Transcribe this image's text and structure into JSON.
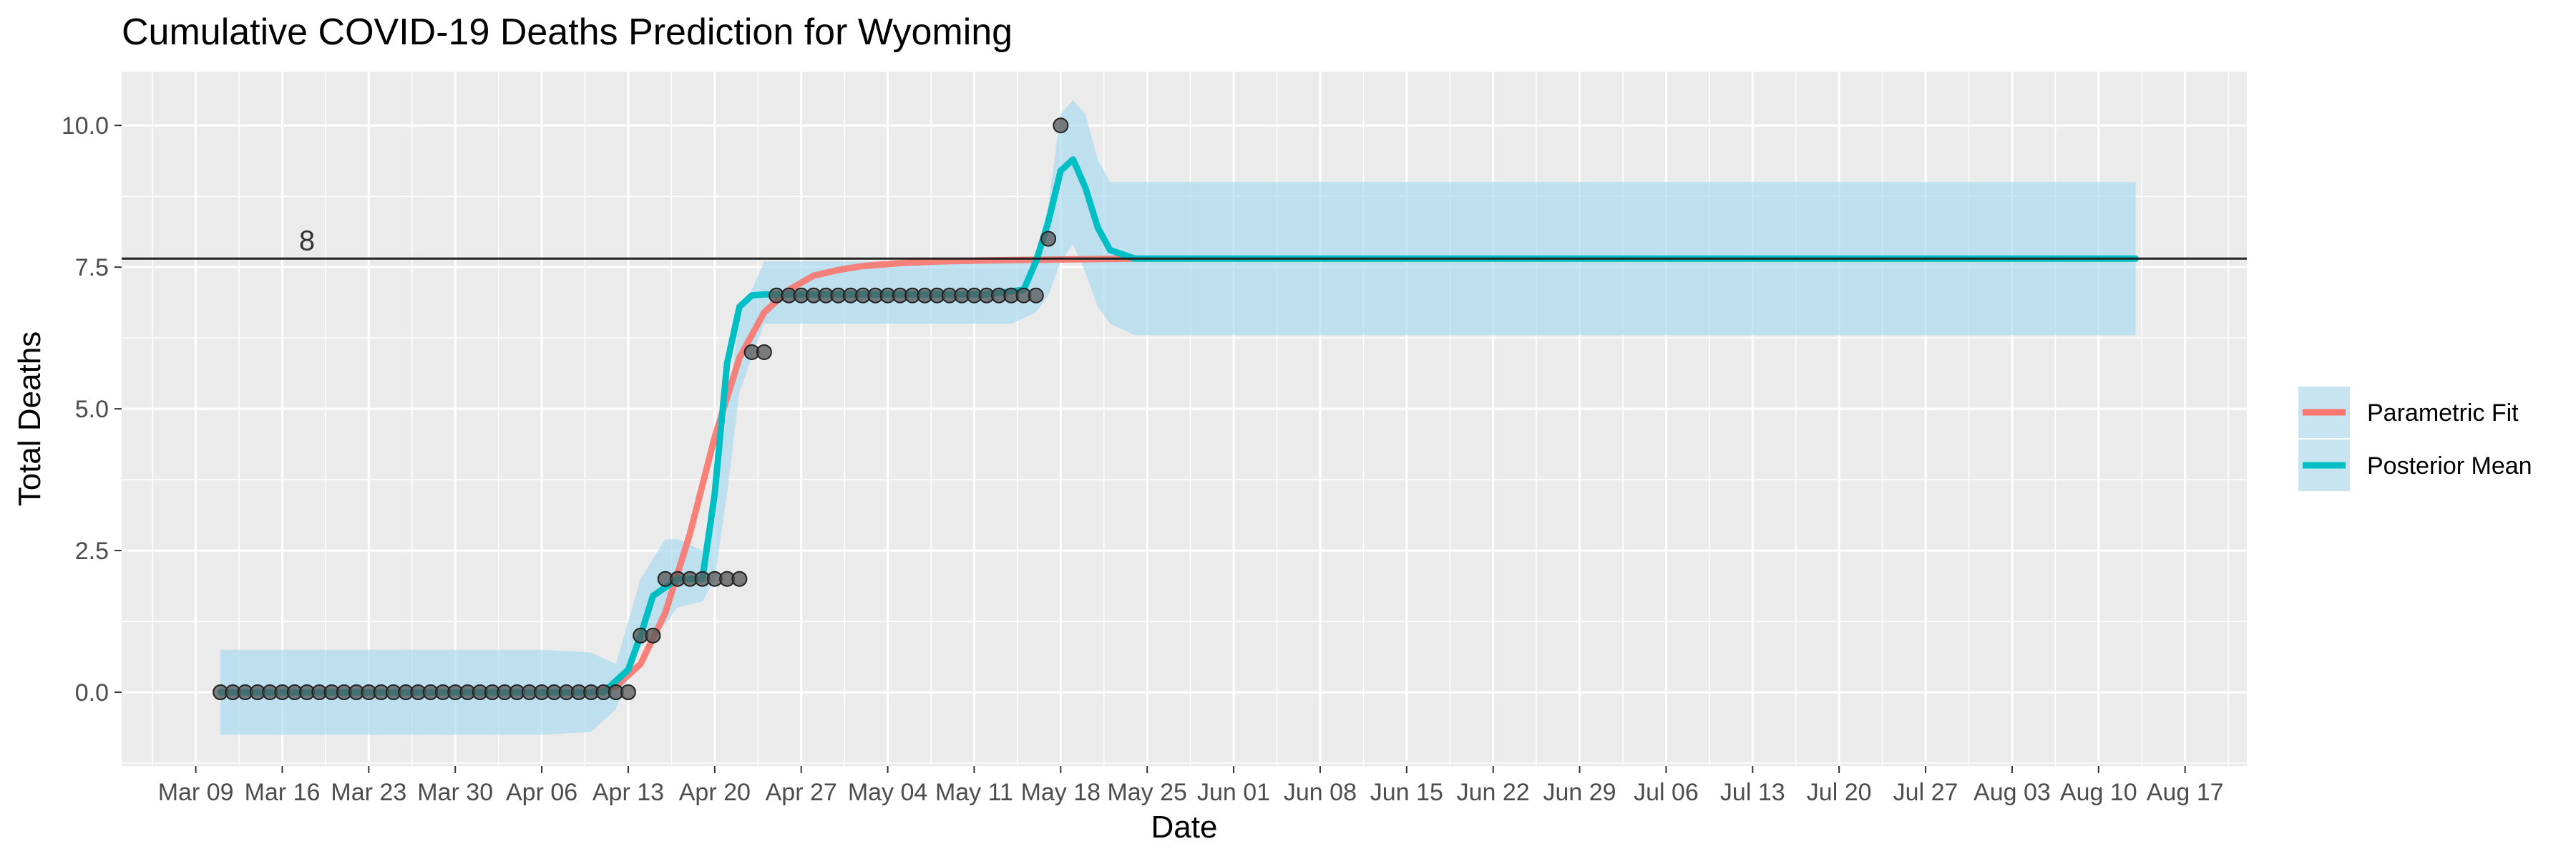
{
  "chart_data": {
    "type": "line",
    "title": "Cumulative COVID-19 Deaths Prediction for Wyoming",
    "xlabel": "Date",
    "ylabel": "Total Deaths",
    "xlim": [
      "2020-03-03",
      "2020-08-22"
    ],
    "ylim": [
      -1.3,
      10.95
    ],
    "x_ticks": [
      "2020-03-09",
      "2020-03-16",
      "2020-03-23",
      "2020-03-30",
      "2020-04-06",
      "2020-04-13",
      "2020-04-20",
      "2020-04-27",
      "2020-05-04",
      "2020-05-11",
      "2020-05-18",
      "2020-05-25",
      "2020-06-01",
      "2020-06-08",
      "2020-06-15",
      "2020-06-22",
      "2020-06-29",
      "2020-07-06",
      "2020-07-13",
      "2020-07-20",
      "2020-07-27",
      "2020-08-03",
      "2020-08-10",
      "2020-08-17"
    ],
    "x_tick_labels": [
      "Mar 09",
      "Mar 16",
      "Mar 23",
      "Mar 30",
      "Apr 06",
      "Apr 13",
      "Apr 20",
      "Apr 27",
      "May 04",
      "May 11",
      "May 18",
      "May 25",
      "Jun 01",
      "Jun 08",
      "Jun 15",
      "Jun 22",
      "Jun 29",
      "Jul 06",
      "Jul 13",
      "Jul 20",
      "Jul 27",
      "Aug 03",
      "Aug 10",
      "Aug 17"
    ],
    "y_ticks": [
      0,
      2.5,
      5,
      7.5,
      10
    ],
    "y_tick_labels": [
      "0.0",
      "2.5",
      "5.0",
      "7.5",
      "10.0"
    ],
    "grid": true,
    "legend_position": "right",
    "hline": {
      "y": 7.65,
      "label": "8",
      "label_x": "2020-03-18",
      "label_y": 7.8
    },
    "colors": {
      "parametric": "#F8766D",
      "posterior": "#00BFC4",
      "band": "#A6D8F0",
      "points": "#555555",
      "panel": "#EBEBEB",
      "grid": "#FFFFFF"
    },
    "observed": {
      "x": [
        "2020-03-11",
        "2020-03-12",
        "2020-03-13",
        "2020-03-14",
        "2020-03-15",
        "2020-03-16",
        "2020-03-17",
        "2020-03-18",
        "2020-03-19",
        "2020-03-20",
        "2020-03-21",
        "2020-03-22",
        "2020-03-23",
        "2020-03-24",
        "2020-03-25",
        "2020-03-26",
        "2020-03-27",
        "2020-03-28",
        "2020-03-29",
        "2020-03-30",
        "2020-03-31",
        "2020-04-01",
        "2020-04-02",
        "2020-04-03",
        "2020-04-04",
        "2020-04-05",
        "2020-04-06",
        "2020-04-07",
        "2020-04-08",
        "2020-04-09",
        "2020-04-10",
        "2020-04-11",
        "2020-04-12",
        "2020-04-13",
        "2020-04-14",
        "2020-04-15",
        "2020-04-16",
        "2020-04-17",
        "2020-04-18",
        "2020-04-19",
        "2020-04-20",
        "2020-04-21",
        "2020-04-22",
        "2020-04-23",
        "2020-04-24",
        "2020-04-25",
        "2020-04-26",
        "2020-04-27",
        "2020-04-28",
        "2020-04-29",
        "2020-04-30",
        "2020-05-01",
        "2020-05-02",
        "2020-05-03",
        "2020-05-04",
        "2020-05-05",
        "2020-05-06",
        "2020-05-07",
        "2020-05-08",
        "2020-05-09",
        "2020-05-10",
        "2020-05-11",
        "2020-05-12",
        "2020-05-13",
        "2020-05-14",
        "2020-05-15",
        "2020-05-16",
        "2020-05-17",
        "2020-05-18"
      ],
      "y": [
        0,
        0,
        0,
        0,
        0,
        0,
        0,
        0,
        0,
        0,
        0,
        0,
        0,
        0,
        0,
        0,
        0,
        0,
        0,
        0,
        0,
        0,
        0,
        0,
        0,
        0,
        0,
        0,
        0,
        0,
        0,
        0,
        0,
        0,
        1,
        1,
        2,
        2,
        2,
        2,
        2,
        2,
        2,
        6,
        6,
        7,
        7,
        7,
        7,
        7,
        7,
        7,
        7,
        7,
        7,
        7,
        7,
        7,
        7,
        7,
        7,
        7,
        7,
        7,
        7,
        7,
        7,
        8,
        10
      ]
    },
    "series": [
      {
        "name": "Parametric Fit",
        "x": [
          "2020-04-10",
          "2020-04-12",
          "2020-04-14",
          "2020-04-16",
          "2020-04-18",
          "2020-04-20",
          "2020-04-22",
          "2020-04-24",
          "2020-04-26",
          "2020-04-28",
          "2020-04-30",
          "2020-05-02",
          "2020-05-05",
          "2020-05-08",
          "2020-05-12",
          "2020-05-16",
          "2020-05-20",
          "2020-05-24"
        ],
        "values": [
          0,
          0.1,
          0.5,
          1.4,
          2.8,
          4.5,
          5.9,
          6.7,
          7.1,
          7.35,
          7.45,
          7.52,
          7.57,
          7.6,
          7.62,
          7.63,
          7.64,
          7.65
        ]
      },
      {
        "name": "Posterior Mean",
        "x": [
          "2020-03-11",
          "2020-04-11",
          "2020-04-13",
          "2020-04-14",
          "2020-04-15",
          "2020-04-17",
          "2020-04-19",
          "2020-04-20",
          "2020-04-21",
          "2020-04-22",
          "2020-04-23",
          "2020-04-24",
          "2020-04-25",
          "2020-04-27",
          "2020-05-05",
          "2020-05-12",
          "2020-05-15",
          "2020-05-16",
          "2020-05-17",
          "2020-05-18",
          "2020-05-19",
          "2020-05-20",
          "2020-05-21",
          "2020-05-22",
          "2020-05-24",
          "2020-08-13"
        ],
        "values": [
          0,
          0,
          0.4,
          1.0,
          1.7,
          2.0,
          2.0,
          3.5,
          5.8,
          6.8,
          7.0,
          7.02,
          7.02,
          7.02,
          7.02,
          7.02,
          7.1,
          7.6,
          8.3,
          9.2,
          9.4,
          8.9,
          8.2,
          7.8,
          7.65,
          7.65
        ]
      }
    ],
    "band": {
      "x": [
        "2020-03-11",
        "2020-04-06",
        "2020-04-10",
        "2020-04-12",
        "2020-04-14",
        "2020-04-16",
        "2020-04-17",
        "2020-04-19",
        "2020-04-20",
        "2020-04-21",
        "2020-04-22",
        "2020-04-24",
        "2020-05-14",
        "2020-05-16",
        "2020-05-17",
        "2020-05-18",
        "2020-05-19",
        "2020-05-20",
        "2020-05-21",
        "2020-05-22",
        "2020-05-24",
        "2020-08-13"
      ],
      "lower": [
        -0.75,
        -0.75,
        -0.7,
        -0.3,
        0.8,
        1.2,
        1.5,
        1.6,
        2.0,
        3.5,
        5.3,
        6.5,
        6.5,
        6.7,
        7.0,
        7.6,
        7.9,
        7.4,
        6.8,
        6.5,
        6.3,
        6.3
      ],
      "upper": [
        0.75,
        0.75,
        0.7,
        0.5,
        2.0,
        2.7,
        2.7,
        2.5,
        3.2,
        5.0,
        6.6,
        7.6,
        7.6,
        7.7,
        8.6,
        10.2,
        10.45,
        10.2,
        9.4,
        9.0,
        9.0,
        9.0
      ]
    },
    "legend": [
      {
        "label": "Parametric Fit",
        "series": "parametric"
      },
      {
        "label": "Posterior Mean",
        "series": "posterior"
      }
    ]
  }
}
